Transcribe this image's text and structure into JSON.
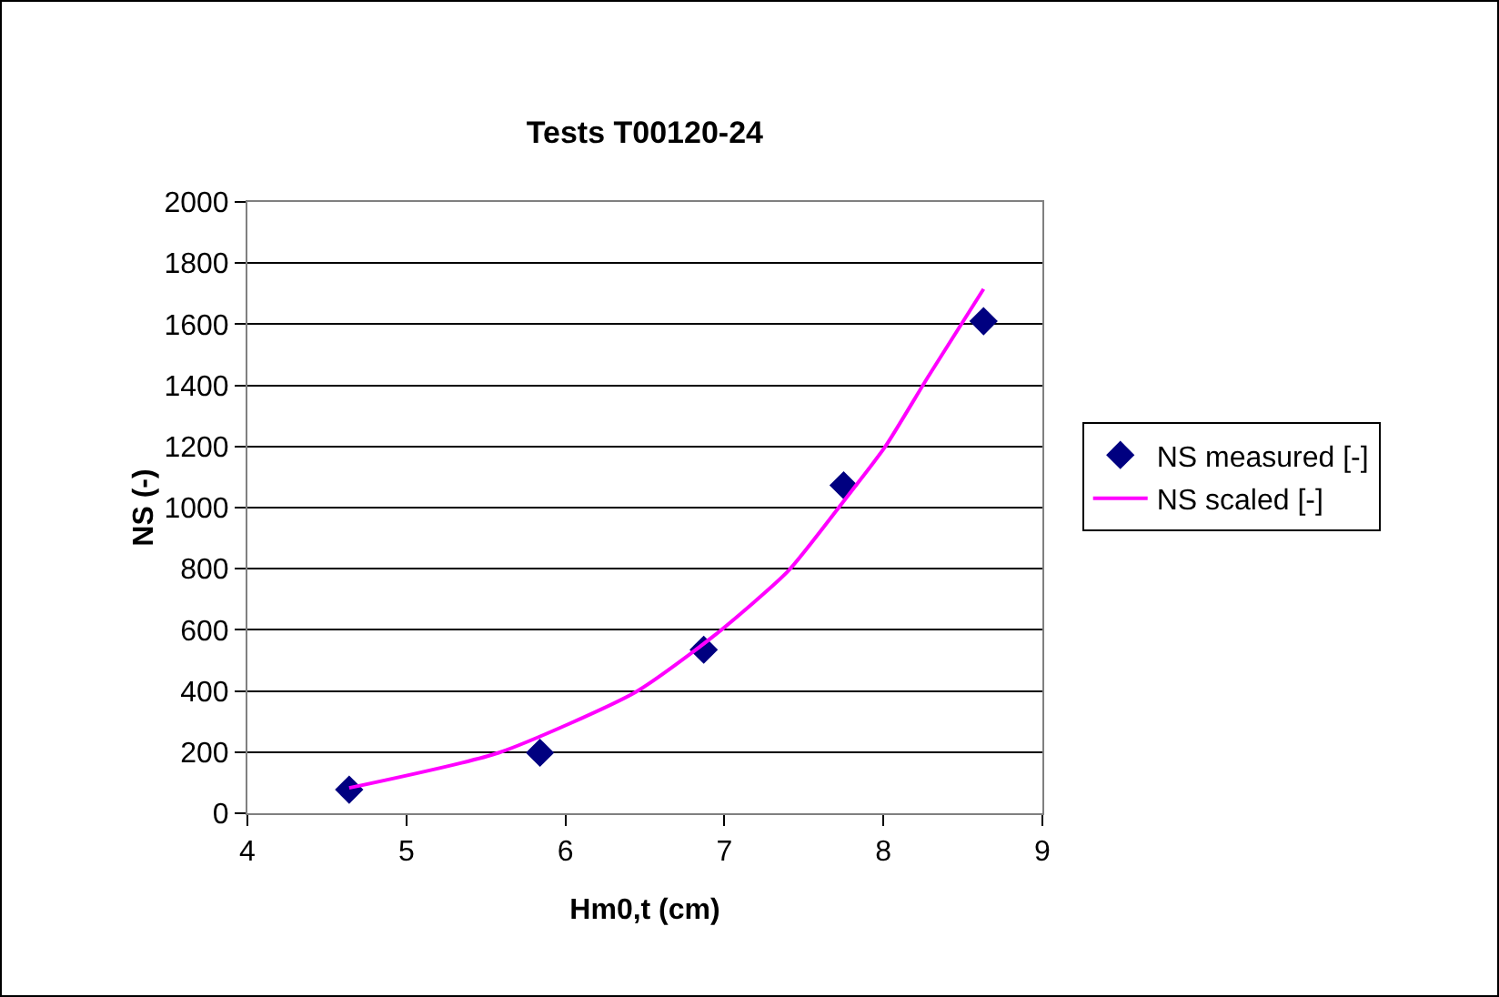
{
  "chart_data": {
    "type": "scatter",
    "title": "Tests T00120-24",
    "xlabel": "Hm0,t (cm)",
    "ylabel": "NS (-)",
    "xlim": [
      4,
      9
    ],
    "xticks": [
      4,
      5,
      6,
      7,
      8,
      9
    ],
    "ylim": [
      0,
      2000
    ],
    "yticks": [
      0,
      200,
      400,
      600,
      800,
      1000,
      1200,
      1400,
      1600,
      1800,
      2000
    ],
    "grid": "y",
    "legend": "right",
    "series": [
      {
        "name": "NS measured [-]",
        "marker": "diamond",
        "color": "#000080",
        "x": [
          4.64,
          5.84,
          6.87,
          7.75,
          8.63
        ],
        "values": [
          77,
          198,
          535,
          1073,
          1610
        ]
      },
      {
        "name": "NS scaled [-]",
        "type": "line",
        "marker": "none",
        "color": "#ff00ff",
        "x": [
          4.64,
          5.58,
          6.44,
          6.94,
          7.4,
          7.75,
          8.01,
          8.28,
          8.63
        ],
        "values": [
          83,
          198,
          396,
          583,
          792,
          1021,
          1198,
          1427,
          1715
        ]
      }
    ]
  }
}
